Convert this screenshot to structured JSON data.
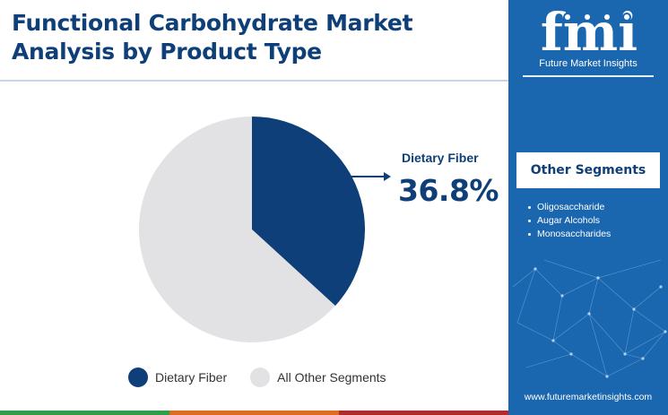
{
  "header": {
    "title_line1": "Functional Carbohydrate Market",
    "title_line2": "Analysis by Product Type"
  },
  "chart_data": {
    "type": "pie",
    "slices": [
      {
        "label": "Dietary Fiber",
        "value": 36.8,
        "color": "#0f3f78"
      },
      {
        "label": "All Other Segments",
        "value": 63.2,
        "color": "#e2e2e5"
      }
    ],
    "callout": {
      "label": "Dietary Fiber",
      "value": "36.8%"
    },
    "legend_position": "bottom"
  },
  "legend": {
    "items": [
      {
        "label": "Dietary Fiber",
        "color": "#0f3f78"
      },
      {
        "label": "All Other Segments",
        "color": "#e2e2e5"
      }
    ]
  },
  "sidebar": {
    "brand_mark": "fmi",
    "brand_name": "Future Market Insights",
    "segments_title": "Other Segments",
    "segments": [
      "Oligosaccharide",
      "Augar Alcohols",
      "Monosaccharides"
    ],
    "website": "www.futuremarketinsights.com"
  },
  "colors": {
    "primary": "#0f3f78",
    "sidebar_bg": "#1a67b0",
    "bottom_bar": [
      "#2e9e4a",
      "#e06b1f",
      "#b32a2a"
    ]
  },
  "icons": [
    "fmi-logo",
    "callout-arrow-icon",
    "bullet-dot-icon"
  ]
}
